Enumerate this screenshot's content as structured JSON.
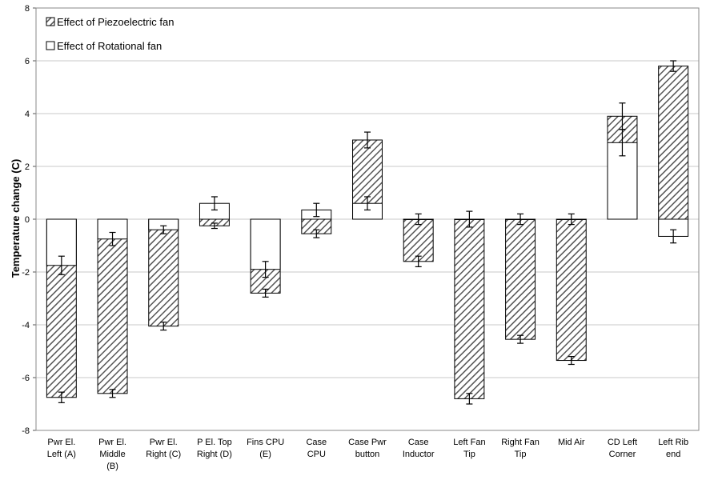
{
  "chart_data": {
    "type": "bar",
    "stacked": true,
    "ylabel": "Temperature change (C)",
    "xlabel": "",
    "ylim": [
      -8,
      8
    ],
    "yticks": [
      -8,
      -6,
      -4,
      -2,
      0,
      2,
      4,
      6,
      8
    ],
    "grid": "horizontal",
    "legend_position": "top-left",
    "categories": [
      [
        "Pwr El.",
        "Left (A)"
      ],
      [
        "Pwr El.",
        "Middle",
        "(B)"
      ],
      [
        "Pwr El.",
        "Right (C)"
      ],
      [
        "P El. Top",
        "Right (D)"
      ],
      [
        "Fins CPU",
        "(E)"
      ],
      [
        "Case",
        "CPU"
      ],
      [
        "Case Pwr",
        "button"
      ],
      [
        "Case",
        "Inductor"
      ],
      [
        "Left Fan",
        "Tip"
      ],
      [
        "Right Fan",
        "Tip"
      ],
      [
        "Mid Air"
      ],
      [
        "CD Left",
        "Corner"
      ],
      [
        "Left Rib",
        "end"
      ]
    ],
    "series": [
      {
        "name": "Effect of Piezoelectric fan",
        "pattern": "hatched",
        "values": [
          -6.75,
          -6.6,
          -4.05,
          -0.25,
          -2.8,
          -0.55,
          3.0,
          -1.6,
          -6.8,
          -4.55,
          -5.35,
          3.9,
          5.8
        ],
        "errors": [
          0.2,
          0.15,
          0.15,
          0.1,
          0.15,
          0.15,
          0.3,
          0.2,
          0.2,
          0.15,
          0.15,
          0.5,
          0.2
        ]
      },
      {
        "name": "Effect of Rotational fan",
        "pattern": "solid-white",
        "values": [
          -1.75,
          -0.75,
          -0.4,
          0.6,
          -1.9,
          0.35,
          0.6,
          0,
          0,
          0,
          0,
          2.9,
          -0.65
        ],
        "errors": [
          0.35,
          0.25,
          0.15,
          0.25,
          0.3,
          0.25,
          0.25,
          0.2,
          0.3,
          0.2,
          0.2,
          0.5,
          0.25
        ]
      }
    ]
  }
}
